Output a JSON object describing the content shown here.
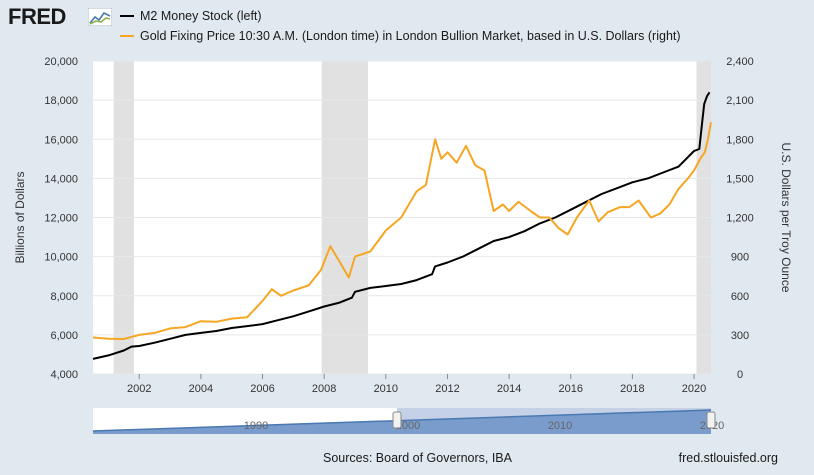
{
  "header": {
    "logo": "FRED",
    "legend": [
      {
        "label": "M2 Money Stock (left)",
        "color": "#000000"
      },
      {
        "label": "Gold Fixing Price 10:30 A.M. (London time) in London Bullion Market, based in U.S. Dollars (right)",
        "color": "#f5a623"
      }
    ]
  },
  "chart_data": {
    "type": "line",
    "xlim": [
      2000.5,
      2020.55
    ],
    "x_ticks": [
      "2002",
      "2004",
      "2006",
      "2008",
      "2010",
      "2012",
      "2014",
      "2016",
      "2018",
      "2020"
    ],
    "ylabel_left": "Billions of Dollars",
    "ylabel_right": "U.S. Dollars per Troy Ounce",
    "ylim_left": [
      4000,
      20000
    ],
    "ylim_right": [
      0,
      2400
    ],
    "y_ticks_left": [
      "4,000",
      "6,000",
      "8,000",
      "10,000",
      "12,000",
      "14,000",
      "16,000",
      "18,000",
      "20,000"
    ],
    "y_ticks_right": [
      "0",
      "300",
      "600",
      "900",
      "1,200",
      "1,500",
      "1,800",
      "2,100",
      "2,400"
    ],
    "grid": true,
    "recessions": [
      [
        2001.17,
        2001.83
      ],
      [
        2007.92,
        2009.42
      ],
      [
        2020.08,
        2020.55
      ]
    ],
    "series": [
      {
        "name": "M2 Money Stock (left)",
        "color": "#000000",
        "axis": "left",
        "points": [
          [
            2000.5,
            4770
          ],
          [
            2001.0,
            4950
          ],
          [
            2001.5,
            5200
          ],
          [
            2001.75,
            5400
          ],
          [
            2002.0,
            5430
          ],
          [
            2002.5,
            5600
          ],
          [
            2003.0,
            5800
          ],
          [
            2003.5,
            6000
          ],
          [
            2004.0,
            6100
          ],
          [
            2004.5,
            6200
          ],
          [
            2005.0,
            6350
          ],
          [
            2005.5,
            6450
          ],
          [
            2006.0,
            6550
          ],
          [
            2006.5,
            6750
          ],
          [
            2007.0,
            6950
          ],
          [
            2007.5,
            7200
          ],
          [
            2008.0,
            7450
          ],
          [
            2008.5,
            7650
          ],
          [
            2008.9,
            7900
          ],
          [
            2009.0,
            8200
          ],
          [
            2009.5,
            8400
          ],
          [
            2010.0,
            8500
          ],
          [
            2010.5,
            8600
          ],
          [
            2011.0,
            8800
          ],
          [
            2011.5,
            9100
          ],
          [
            2011.6,
            9500
          ],
          [
            2012.0,
            9700
          ],
          [
            2012.5,
            10000
          ],
          [
            2013.0,
            10400
          ],
          [
            2013.5,
            10800
          ],
          [
            2014.0,
            11000
          ],
          [
            2014.5,
            11300
          ],
          [
            2015.0,
            11700
          ],
          [
            2015.5,
            12000
          ],
          [
            2016.0,
            12400
          ],
          [
            2016.5,
            12800
          ],
          [
            2017.0,
            13200
          ],
          [
            2017.5,
            13500
          ],
          [
            2018.0,
            13800
          ],
          [
            2018.5,
            14000
          ],
          [
            2019.0,
            14300
          ],
          [
            2019.5,
            14600
          ],
          [
            2020.0,
            15400
          ],
          [
            2020.17,
            15500
          ],
          [
            2020.25,
            16700
          ],
          [
            2020.33,
            17800
          ],
          [
            2020.42,
            18200
          ],
          [
            2020.5,
            18400
          ]
        ]
      },
      {
        "name": "Gold Fixing Price 10:30 A.M. (London time) in London Bullion Market, based in U.S. Dollars (right)",
        "color": "#f5a623",
        "axis": "right",
        "points": [
          [
            2000.5,
            280
          ],
          [
            2001.0,
            270
          ],
          [
            2001.5,
            268
          ],
          [
            2002.0,
            300
          ],
          [
            2002.5,
            315
          ],
          [
            2003.0,
            350
          ],
          [
            2003.5,
            360
          ],
          [
            2004.0,
            405
          ],
          [
            2004.5,
            400
          ],
          [
            2005.0,
            425
          ],
          [
            2005.5,
            435
          ],
          [
            2006.0,
            560
          ],
          [
            2006.3,
            650
          ],
          [
            2006.6,
            600
          ],
          [
            2007.0,
            640
          ],
          [
            2007.5,
            680
          ],
          [
            2007.9,
            800
          ],
          [
            2008.2,
            980
          ],
          [
            2008.5,
            860
          ],
          [
            2008.8,
            740
          ],
          [
            2009.0,
            900
          ],
          [
            2009.5,
            940
          ],
          [
            2010.0,
            1100
          ],
          [
            2010.5,
            1200
          ],
          [
            2011.0,
            1400
          ],
          [
            2011.3,
            1450
          ],
          [
            2011.6,
            1800
          ],
          [
            2011.8,
            1650
          ],
          [
            2012.0,
            1700
          ],
          [
            2012.3,
            1620
          ],
          [
            2012.6,
            1750
          ],
          [
            2012.9,
            1600
          ],
          [
            2013.2,
            1560
          ],
          [
            2013.5,
            1250
          ],
          [
            2013.8,
            1300
          ],
          [
            2014.0,
            1250
          ],
          [
            2014.3,
            1320
          ],
          [
            2014.7,
            1250
          ],
          [
            2015.0,
            1200
          ],
          [
            2015.3,
            1200
          ],
          [
            2015.6,
            1120
          ],
          [
            2015.9,
            1070
          ],
          [
            2016.2,
            1200
          ],
          [
            2016.6,
            1330
          ],
          [
            2016.9,
            1170
          ],
          [
            2017.2,
            1240
          ],
          [
            2017.6,
            1280
          ],
          [
            2017.9,
            1280
          ],
          [
            2018.2,
            1330
          ],
          [
            2018.6,
            1200
          ],
          [
            2018.9,
            1230
          ],
          [
            2019.2,
            1300
          ],
          [
            2019.5,
            1420
          ],
          [
            2019.8,
            1500
          ],
          [
            2020.0,
            1560
          ],
          [
            2020.2,
            1650
          ],
          [
            2020.35,
            1700
          ],
          [
            2020.45,
            1800
          ],
          [
            2020.55,
            1930
          ]
        ]
      }
    ]
  },
  "navigator": {
    "labels": [
      "1990",
      "2000",
      "2010",
      "2020"
    ]
  },
  "footer": {
    "sources": "Sources: Board of Governors, IBA",
    "url": "fred.stlouisfed.org"
  }
}
